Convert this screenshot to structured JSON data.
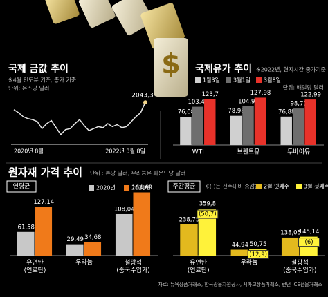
{
  "section": {
    "title": "원자재 가격 추이",
    "unit": "단위 : 톤당 달러, 우라늄은 파운드당 달러"
  },
  "source": "자료: 뉴욕상품거래소, 한국광물자원공사, 시카고상품거래소, 런던 ICE선물거래소",
  "chart_data": [
    {
      "type": "line",
      "title": "국제 금값 추이",
      "subtitle": "※4월 인도분 기준, 종가 기준",
      "unit": "단위: 온스당 달러",
      "categories": [
        "2020년 8월",
        null,
        null,
        null,
        null,
        null,
        null,
        null,
        null,
        null,
        null,
        null,
        null,
        null,
        null,
        null,
        null,
        null,
        null,
        null,
        null,
        null,
        null,
        null,
        null,
        null,
        null,
        null,
        "2022년 3월 8일"
      ],
      "values": [
        1970,
        1940,
        1900,
        1880,
        1870,
        1850,
        1780,
        1830,
        1860,
        1790,
        1720,
        1770,
        1780,
        1830,
        1870,
        1810,
        1760,
        1780,
        1800,
        1790,
        1830,
        1800,
        1820,
        1790,
        1800,
        1850,
        1900,
        1940,
        2043.3
      ],
      "value_labels": [
        null,
        null,
        null,
        null,
        null,
        null,
        null,
        null,
        null,
        null,
        null,
        null,
        null,
        null,
        null,
        null,
        null,
        null,
        null,
        null,
        null,
        null,
        null,
        null,
        null,
        null,
        null,
        null,
        "2043,3"
      ],
      "color": "#e6e6e6",
      "ylim": [
        1650,
        2100
      ]
    },
    {
      "type": "bar",
      "title": "국제유가 추이",
      "subtitle": "※2022년, 현지시간 종가기준",
      "unit": "단위: 배럴당 달러",
      "categories": [
        "WTI",
        "브렌트유",
        "두바이유"
      ],
      "ylim": [
        0,
        140
      ],
      "series": [
        {
          "name": "1월3일",
          "color": "#d0d0d0",
          "values": [
            76.08,
            78.98,
            76.88
          ],
          "value_labels": [
            "76,08",
            "78,98",
            "76,88"
          ]
        },
        {
          "name": "3월1일",
          "color": "#6e6e6e",
          "values": [
            103.41,
            104.97,
            98.71
          ],
          "value_labels": [
            "103,41",
            "104,97",
            "98,71"
          ]
        },
        {
          "name": "3월8일",
          "color": "#e8322a",
          "values": [
            123.7,
            127.98,
            122.99
          ],
          "value_labels": [
            "123,7",
            "127,98",
            "122,99"
          ]
        }
      ]
    },
    {
      "type": "bar",
      "title": "연평균",
      "categories": [
        "유연탄\n(연료탄)",
        "우라늄",
        "철광석\n(중국수입가)"
      ],
      "ylim": [
        0,
        180
      ],
      "series": [
        {
          "name": "2020년",
          "color": "#c8c8c8",
          "values": [
            61.58,
            29.49,
            108.04
          ],
          "value_labels": [
            "61,58",
            "29,49",
            "108,04"
          ]
        },
        {
          "name": "2021년",
          "color": "#f07a1a",
          "values": [
            127.14,
            34.68,
            164.69
          ],
          "value_labels": [
            "127,14",
            "34,68",
            "164,69"
          ]
        }
      ]
    },
    {
      "type": "bar",
      "title": "주간평균",
      "subtitle": "※( )는 전주대비 증감율",
      "categories": [
        "유연탄\n(연료탄)",
        "우라늄",
        "철광석\n(중국수입가)"
      ],
      "ylim": [
        0,
        530
      ],
      "series": [
        {
          "name": "2월 넷째주",
          "color": "#e3b91e",
          "values": [
            238.75,
            44.94,
            138.05
          ],
          "value_labels": [
            "238,75",
            "44,94",
            "138,05"
          ]
        },
        {
          "name": "3월 첫째주",
          "color": "#fff23a",
          "values": [
            359.8,
            50.75,
            145.14
          ],
          "value_labels": [
            "359,8",
            "50,75",
            "145,14"
          ]
        }
      ],
      "annotations": [
        {
          "value": 50.7,
          "label": "(50,7)"
        },
        {
          "value": 12.9,
          "label": "(12,9)"
        },
        {
          "value": 6,
          "label": "(6)"
        }
      ]
    }
  ]
}
